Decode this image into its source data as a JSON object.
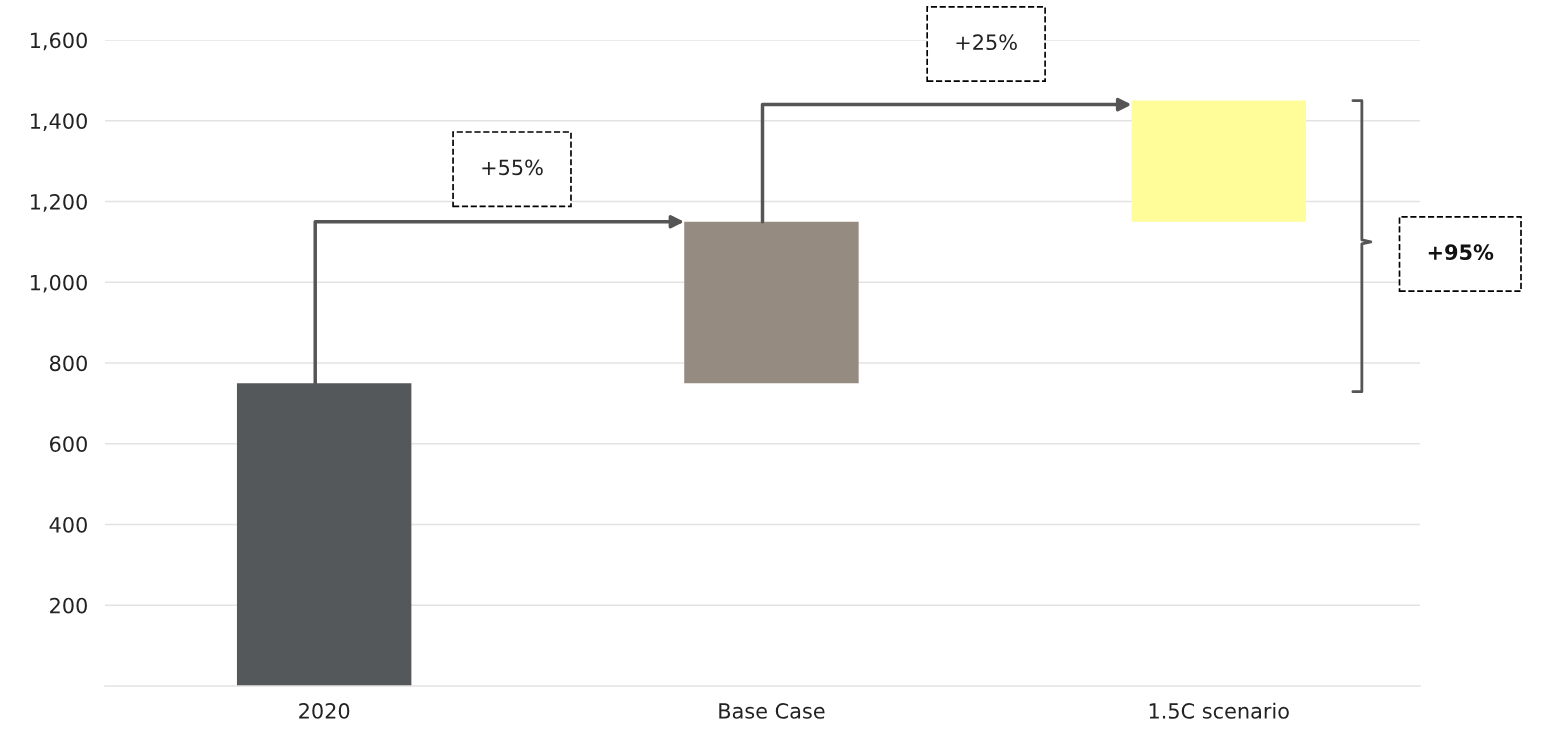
{
  "chart_data": {
    "type": "bar",
    "categories": [
      "2020",
      "Base Case",
      "1.5C scenario"
    ],
    "values": [
      750,
      400,
      300
    ],
    "base": [
      0,
      750,
      1150
    ],
    "colors": [
      "#54585a",
      "#968b81",
      "#fffc9a"
    ],
    "ylim": [
      0,
      1600
    ],
    "yticks": [
      {
        "value": 200,
        "label": "200"
      },
      {
        "value": 400,
        "label": "400"
      },
      {
        "value": 600,
        "label": "600"
      },
      {
        "value": 800,
        "label": "800"
      },
      {
        "value": 1000,
        "label": "1,000"
      },
      {
        "value": 1200,
        "label": "1,200"
      },
      {
        "value": 1400,
        "label": "1,400"
      },
      {
        "value": 1600,
        "label": "1,600"
      }
    ],
    "grid": "y",
    "legend": false,
    "annotations": [
      "+55%",
      "+25%",
      "+95%"
    ]
  }
}
